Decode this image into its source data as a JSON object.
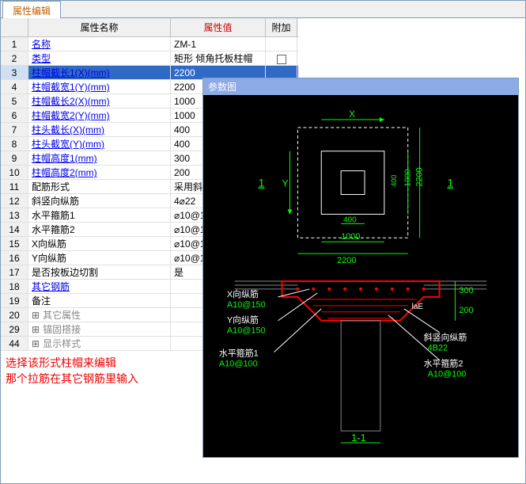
{
  "tab": {
    "label": "属性编辑"
  },
  "headers": {
    "name": "属性名称",
    "value": "属性值",
    "extra": "附加"
  },
  "rows": [
    {
      "n": "1",
      "name": "名称",
      "value": "ZM-1",
      "link": true
    },
    {
      "n": "2",
      "name": "类型",
      "value": "矩形 倾角托板柱帽",
      "link": true,
      "checkbox": true
    },
    {
      "n": "3",
      "name": "柱帽截长1(X)(mm)",
      "value": "2200",
      "link": true,
      "selected": true
    },
    {
      "n": "4",
      "name": "柱帽截宽1(Y)(mm)",
      "value": "2200",
      "link": true
    },
    {
      "n": "5",
      "name": "柱帽截长2(X)(mm)",
      "value": "1000",
      "link": true
    },
    {
      "n": "6",
      "name": "柱帽截宽2(Y)(mm)",
      "value": "1000",
      "link": true
    },
    {
      "n": "7",
      "name": "柱头截长(X)(mm)",
      "value": "400",
      "link": true
    },
    {
      "n": "8",
      "name": "柱头截宽(Y)(mm)",
      "value": "400",
      "link": true
    },
    {
      "n": "9",
      "name": "柱帽高度1(mm)",
      "value": "300",
      "link": true
    },
    {
      "n": "10",
      "name": "柱帽高度2(mm)",
      "value": "200",
      "link": true
    },
    {
      "n": "11",
      "name": "配筋形式",
      "value": "采用斜"
    },
    {
      "n": "12",
      "name": "斜竖向纵筋",
      "value": "4⌀22"
    },
    {
      "n": "13",
      "name": "水平箍筋1",
      "value": "⌀10@1"
    },
    {
      "n": "14",
      "name": "水平箍筋2",
      "value": "⌀10@1"
    },
    {
      "n": "15",
      "name": "X向纵筋",
      "value": "⌀10@1"
    },
    {
      "n": "16",
      "name": "Y向纵筋",
      "value": "⌀10@1"
    },
    {
      "n": "17",
      "name": "是否按板边切割",
      "value": "是"
    },
    {
      "n": "18",
      "name": "其它钢筋",
      "value": "",
      "link": true
    },
    {
      "n": "19",
      "name": "备注",
      "value": ""
    },
    {
      "n": "20",
      "name": "其它属性",
      "value": "",
      "expand": true,
      "gray": true
    },
    {
      "n": "29",
      "name": "锚固搭接",
      "value": "",
      "expand": true,
      "gray": true
    },
    {
      "n": "44",
      "name": "显示样式",
      "value": "",
      "expand": true,
      "gray": true
    }
  ],
  "note": {
    "line1": "选择该形式柱帽来编辑",
    "line2": "那个拉筋在其它钢筋里输入"
  },
  "diagram": {
    "title": "参数图",
    "plan": {
      "X_label": "X",
      "Y_label": "Y",
      "outer_color": "#00ff00",
      "inner_color": "#00ff00",
      "dims": {
        "outer_w": "2200",
        "outer_h": "2200",
        "mid": "1000",
        "mid2": "1000",
        "inner": "400",
        "inner2": "400"
      },
      "section_mark": "1",
      "section_mark2": "1"
    },
    "section": {
      "cap_color": "#ff0000",
      "h1": "300",
      "h2": "200",
      "x_rebar": {
        "label": "X向纵筋",
        "spec": "A10@150"
      },
      "y_rebar": {
        "label": "Y向纵筋",
        "spec": "A10@150"
      },
      "hoop1": {
        "label": "水平箍筋1",
        "spec": "A10@100"
      },
      "diag": {
        "label": "斜竖向纵筋",
        "spec": "4B22"
      },
      "hoop2": {
        "label": "水平箍筋2",
        "spec": "A10@100"
      },
      "lae": "laE",
      "mark": "1-1"
    }
  }
}
